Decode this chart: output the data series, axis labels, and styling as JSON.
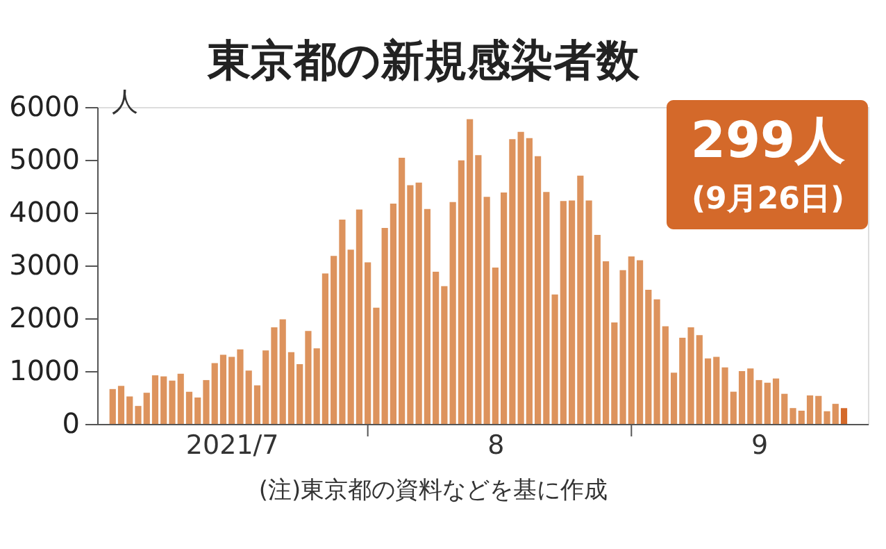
{
  "chart_data": {
    "type": "bar",
    "title": "東京都の新規感染者数",
    "ylabel": "人",
    "x": [
      "2021-07-02",
      "2021-07-03",
      "2021-07-04",
      "2021-07-05",
      "2021-07-06",
      "2021-07-07",
      "2021-07-08",
      "2021-07-09",
      "2021-07-10",
      "2021-07-11",
      "2021-07-12",
      "2021-07-13",
      "2021-07-14",
      "2021-07-15",
      "2021-07-16",
      "2021-07-17",
      "2021-07-18",
      "2021-07-19",
      "2021-07-20",
      "2021-07-21",
      "2021-07-22",
      "2021-07-23",
      "2021-07-24",
      "2021-07-25",
      "2021-07-26",
      "2021-07-27",
      "2021-07-28",
      "2021-07-29",
      "2021-07-30",
      "2021-07-31",
      "2021-08-01",
      "2021-08-02",
      "2021-08-03",
      "2021-08-04",
      "2021-08-05",
      "2021-08-06",
      "2021-08-07",
      "2021-08-08",
      "2021-08-09",
      "2021-08-10",
      "2021-08-11",
      "2021-08-12",
      "2021-08-13",
      "2021-08-14",
      "2021-08-15",
      "2021-08-16",
      "2021-08-17",
      "2021-08-18",
      "2021-08-19",
      "2021-08-20",
      "2021-08-21",
      "2021-08-22",
      "2021-08-23",
      "2021-08-24",
      "2021-08-25",
      "2021-08-26",
      "2021-08-27",
      "2021-08-28",
      "2021-08-29",
      "2021-08-30",
      "2021-08-31",
      "2021-09-01",
      "2021-09-02",
      "2021-09-03",
      "2021-09-04",
      "2021-09-05",
      "2021-09-06",
      "2021-09-07",
      "2021-09-08",
      "2021-09-09",
      "2021-09-10",
      "2021-09-11",
      "2021-09-12",
      "2021-09-13",
      "2021-09-14",
      "2021-09-15",
      "2021-09-16",
      "2021-09-17",
      "2021-09-18",
      "2021-09-19",
      "2021-09-20",
      "2021-09-21",
      "2021-09-22",
      "2021-09-23",
      "2021-09-24",
      "2021-09-25",
      "2021-09-26"
    ],
    "values": [
      660,
      720,
      520,
      340,
      590,
      920,
      900,
      820,
      950,
      610,
      500,
      830,
      1150,
      1310,
      1270,
      1410,
      1010,
      730,
      1390,
      1830,
      1980,
      1360,
      1130,
      1760,
      1430,
      2850,
      3180,
      3870,
      3300,
      4060,
      3060,
      2200,
      3710,
      4170,
      5040,
      4520,
      4570,
      4070,
      2880,
      2610,
      4200,
      4990,
      5770,
      5090,
      4300,
      2960,
      4380,
      5390,
      5530,
      5410,
      5070,
      4390,
      2450,
      4220,
      4230,
      4700,
      4230,
      3580,
      3080,
      1920,
      2910,
      3170,
      3100,
      2540,
      2360,
      1850,
      970,
      1630,
      1830,
      1680,
      1240,
      1270,
      1070,
      610,
      1000,
      1050,
      830,
      780,
      860,
      570,
      300,
      250,
      540,
      530,
      240,
      380,
      299
    ],
    "colors": [
      "#dd935d",
      "#dd935d",
      "#dd935d",
      "#dd935d",
      "#dd935d",
      "#dd935d",
      "#dd935d",
      "#dd935d",
      "#dd935d",
      "#dd935d",
      "#dd935d",
      "#dd935d",
      "#dd935d",
      "#dd935d",
      "#dd935d",
      "#dd935d",
      "#dd935d",
      "#dd935d",
      "#dd935d",
      "#dd935d",
      "#dd935d",
      "#dd935d",
      "#dd935d",
      "#dd935d",
      "#dd935d",
      "#dd935d",
      "#dd935d",
      "#dd935d",
      "#dd935d",
      "#dd935d",
      "#dd935d",
      "#dd935d",
      "#dd935d",
      "#dd935d",
      "#dd935d",
      "#dd935d",
      "#dd935d",
      "#dd935d",
      "#dd935d",
      "#dd935d",
      "#dd935d",
      "#dd935d",
      "#dd935d",
      "#dd935d",
      "#dd935d",
      "#dd935d",
      "#dd935d",
      "#dd935d",
      "#dd935d",
      "#dd935d",
      "#dd935d",
      "#dd935d",
      "#dd935d",
      "#dd935d",
      "#dd935d",
      "#dd935d",
      "#dd935d",
      "#dd935d",
      "#dd935d",
      "#dd935d",
      "#dd935d",
      "#dd935d",
      "#dd935d",
      "#dd935d",
      "#dd935d",
      "#dd935d",
      "#dd935d",
      "#dd935d",
      "#dd935d",
      "#dd935d",
      "#dd935d",
      "#dd935d",
      "#dd935d",
      "#dd935d",
      "#dd935d",
      "#dd935d",
      "#dd935d",
      "#dd935d",
      "#dd935d",
      "#dd935d",
      "#dd935d",
      "#dd935d",
      "#dd935d",
      "#dd935d",
      "#dd935d",
      "#dd935d",
      "#d4692a"
    ],
    "xlim": [
      "2021-07-01",
      "2021-09-28"
    ],
    "xticks": [
      {
        "value": "2021-07-16",
        "label": "2021/7"
      },
      {
        "value": "2021-08-01",
        "label": null
      },
      {
        "value": "2021-08-16",
        "label": "8"
      },
      {
        "value": "2021-09-01",
        "label": null
      },
      {
        "value": "2021-09-16",
        "label": "9"
      }
    ],
    "ylim": [
      0,
      6000
    ],
    "yticks": [
      0,
      1000,
      2000,
      3000,
      4000,
      5000,
      6000
    ],
    "grid": false,
    "annotations": [
      "299人",
      "(9月26日)",
      "(注)東京都の資料などを基に作成"
    ]
  }
}
